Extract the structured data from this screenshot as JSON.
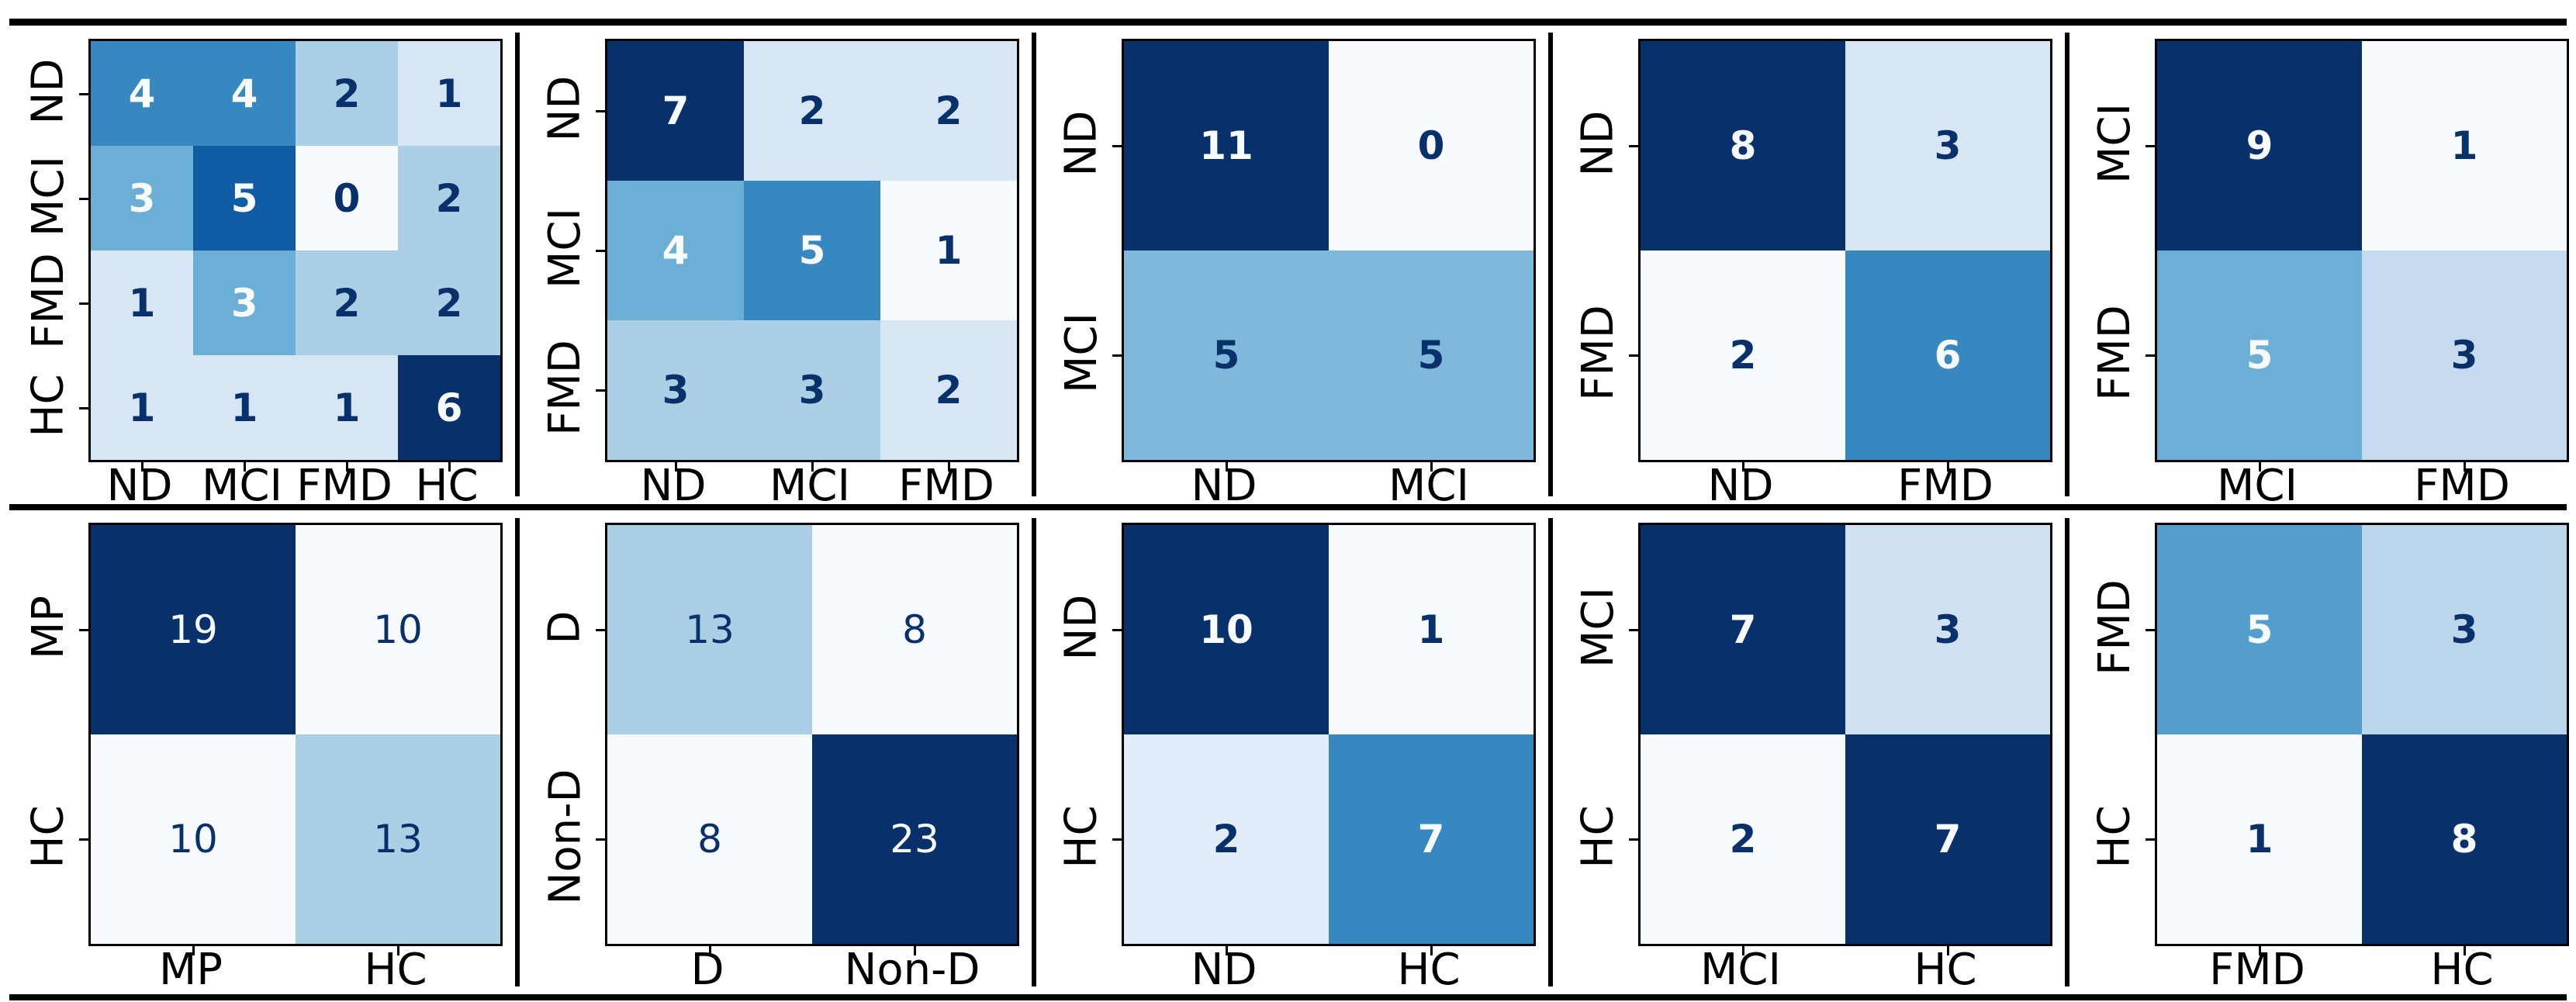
{
  "figure": {
    "description": "Row of ten confusion-matrix heatmaps (2 rows x 5 columns) separated by black rules",
    "background": "#ffffff",
    "rule_color": "#000000"
  },
  "style": {
    "colormap": "Blues",
    "colormap_stops": [
      "#f7fbff",
      "#deebf7",
      "#c6dbef",
      "#9ecae1",
      "#6baed6",
      "#4292c6",
      "#2171b5",
      "#08519c",
      "#08306b"
    ],
    "normalization": "per-panel min-max",
    "dark_annotation_color": "#08306b",
    "light_annotation_color": "#f7fbff",
    "tick_label_color": "#000000",
    "spine_color": "#000000"
  },
  "chart_data": [
    {
      "type": "heatmap",
      "grid": false,
      "legend": false,
      "colormap": "Blues",
      "bold_annotations": true,
      "row_labels": [
        "ND",
        "MCI",
        "FMD",
        "HC"
      ],
      "col_labels": [
        "ND",
        "MCI",
        "FMD",
        "HC"
      ],
      "values": [
        [
          4,
          4,
          2,
          1
        ],
        [
          3,
          5,
          0,
          2
        ],
        [
          1,
          3,
          2,
          2
        ],
        [
          1,
          1,
          1,
          6
        ]
      ]
    },
    {
      "type": "heatmap",
      "grid": false,
      "legend": false,
      "colormap": "Blues",
      "bold_annotations": true,
      "row_labels": [
        "ND",
        "MCI",
        "FMD"
      ],
      "col_labels": [
        "ND",
        "MCI",
        "FMD"
      ],
      "values": [
        [
          7,
          2,
          2
        ],
        [
          4,
          5,
          1
        ],
        [
          3,
          3,
          2
        ]
      ]
    },
    {
      "type": "heatmap",
      "grid": false,
      "legend": false,
      "colormap": "Blues",
      "bold_annotations": true,
      "row_labels": [
        "ND",
        "MCI"
      ],
      "col_labels": [
        "ND",
        "MCI"
      ],
      "values": [
        [
          11,
          0
        ],
        [
          5,
          5
        ]
      ]
    },
    {
      "type": "heatmap",
      "grid": false,
      "legend": false,
      "colormap": "Blues",
      "bold_annotations": true,
      "row_labels": [
        "ND",
        "FMD"
      ],
      "col_labels": [
        "ND",
        "FMD"
      ],
      "values": [
        [
          8,
          3
        ],
        [
          2,
          6
        ]
      ]
    },
    {
      "type": "heatmap",
      "grid": false,
      "legend": false,
      "colormap": "Blues",
      "bold_annotations": true,
      "row_labels": [
        "MCI",
        "FMD"
      ],
      "col_labels": [
        "MCI",
        "FMD"
      ],
      "values": [
        [
          9,
          1
        ],
        [
          5,
          3
        ]
      ]
    },
    {
      "type": "heatmap",
      "grid": false,
      "legend": false,
      "colormap": "Blues",
      "bold_annotations": false,
      "row_labels": [
        "MP",
        "HC"
      ],
      "col_labels": [
        "MP",
        "HC"
      ],
      "values": [
        [
          19,
          10
        ],
        [
          10,
          13
        ]
      ]
    },
    {
      "type": "heatmap",
      "grid": false,
      "legend": false,
      "colormap": "Blues",
      "bold_annotations": false,
      "row_labels": [
        "D",
        "Non-D"
      ],
      "col_labels": [
        "D",
        "Non-D"
      ],
      "values": [
        [
          13,
          8
        ],
        [
          8,
          23
        ]
      ]
    },
    {
      "type": "heatmap",
      "grid": false,
      "legend": false,
      "colormap": "Blues",
      "bold_annotations": true,
      "row_labels": [
        "ND",
        "HC"
      ],
      "col_labels": [
        "ND",
        "HC"
      ],
      "values": [
        [
          10,
          1
        ],
        [
          2,
          7
        ]
      ]
    },
    {
      "type": "heatmap",
      "grid": false,
      "legend": false,
      "colormap": "Blues",
      "bold_annotations": true,
      "row_labels": [
        "MCI",
        "HC"
      ],
      "col_labels": [
        "MCI",
        "HC"
      ],
      "values": [
        [
          7,
          3
        ],
        [
          2,
          7
        ]
      ]
    },
    {
      "type": "heatmap",
      "grid": false,
      "legend": false,
      "colormap": "Blues",
      "bold_annotations": true,
      "row_labels": [
        "FMD",
        "HC"
      ],
      "col_labels": [
        "FMD",
        "HC"
      ],
      "values": [
        [
          5,
          3
        ],
        [
          1,
          8
        ]
      ]
    }
  ]
}
